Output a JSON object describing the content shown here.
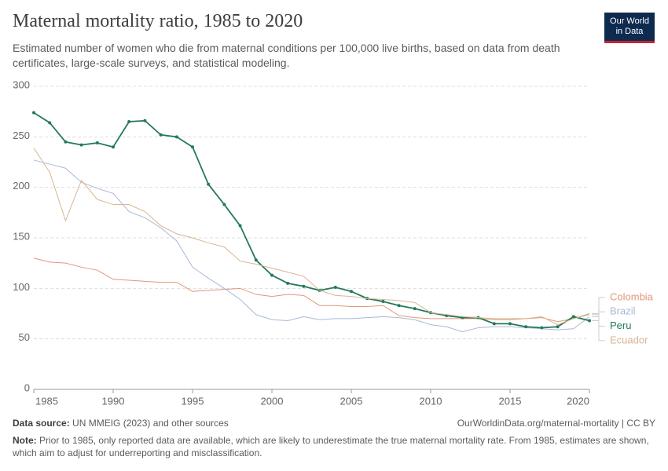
{
  "chart_data": {
    "type": "line",
    "title": "Maternal mortality ratio, 1985 to 2020",
    "subtitle": "Estimated number of women who die from maternal conditions per 100,000 live births, based on data from death certificates, large-scale surveys, and statistical modeling.",
    "logo": [
      "Our World",
      "in Data"
    ],
    "source_label": "Data source:",
    "source": "UN MMEIG (2023) and other sources",
    "url": "OurWorldinData.org/maternal-mortality | CC BY",
    "note_label": "Note:",
    "note": "Prior to 1985, only reported data are available, which are likely to underestimate the true maternal mortality rate. From 1985, estimates are shown, which aim to adjust for underreporting and misclassification.",
    "x": [
      1985,
      1986,
      1987,
      1988,
      1989,
      1990,
      1991,
      1992,
      1993,
      1994,
      1995,
      1996,
      1997,
      1998,
      1999,
      2000,
      2001,
      2002,
      2003,
      2004,
      2005,
      2006,
      2007,
      2008,
      2009,
      2010,
      2011,
      2012,
      2013,
      2014,
      2015,
      2016,
      2017,
      2018,
      2019,
      2020
    ],
    "xlim": [
      1985,
      2020
    ],
    "xticks": [
      1985,
      1990,
      1995,
      2000,
      2005,
      2010,
      2015,
      2020
    ],
    "ylim": [
      0,
      300
    ],
    "yticks": [
      0,
      50,
      100,
      150,
      200,
      250,
      300
    ],
    "grid": true,
    "series": [
      {
        "name": "Colombia",
        "color": "#e0987a",
        "marker": false,
        "values": [
          130,
          126,
          125,
          121,
          118,
          109,
          108,
          107,
          106,
          106,
          97,
          98,
          99,
          100,
          94,
          92,
          94,
          93,
          83,
          83,
          82,
          82,
          83,
          73,
          71,
          70,
          70,
          70,
          70,
          69,
          69,
          70,
          71,
          67,
          70,
          75
        ]
      },
      {
        "name": "Brazil",
        "color": "#a9b9d6",
        "marker": false,
        "values": [
          227,
          223,
          219,
          205,
          199,
          194,
          176,
          170,
          160,
          147,
          121,
          110,
          100,
          89,
          74,
          69,
          68,
          72,
          69,
          70,
          70,
          71,
          72,
          71,
          69,
          64,
          62,
          57,
          61,
          62,
          62,
          61,
          60,
          59,
          60,
          72
        ]
      },
      {
        "name": "Peru",
        "color": "#24795a",
        "marker": true,
        "values": [
          274,
          264,
          245,
          242,
          244,
          240,
          265,
          266,
          252,
          250,
          240,
          203,
          183,
          162,
          128,
          113,
          105,
          102,
          98,
          101,
          97,
          90,
          87,
          83,
          80,
          76,
          73,
          71,
          71,
          65,
          65,
          62,
          61,
          62,
          72,
          68
        ]
      },
      {
        "name": "Ecuador",
        "color": "#d9b592",
        "marker": false,
        "values": [
          239,
          215,
          167,
          207,
          188,
          183,
          183,
          176,
          162,
          154,
          150,
          145,
          141,
          127,
          124,
          120,
          116,
          112,
          98,
          93,
          92,
          90,
          89,
          88,
          86,
          76,
          74,
          72,
          71,
          70,
          70,
          70,
          72,
          64,
          70,
          74
        ]
      }
    ]
  }
}
